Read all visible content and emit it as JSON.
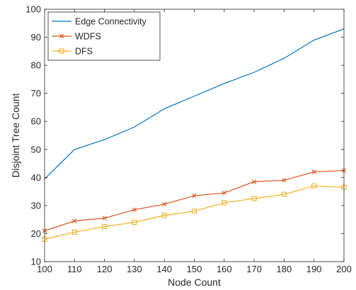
{
  "chart_data": {
    "type": "line",
    "title": "",
    "xlabel": "Node Count",
    "ylabel": "Disjoint Tree Count",
    "xlim": [
      100,
      200
    ],
    "ylim": [
      10,
      100
    ],
    "x_ticks": [
      100,
      110,
      120,
      130,
      140,
      150,
      160,
      170,
      180,
      190,
      200
    ],
    "y_ticks": [
      10,
      20,
      30,
      40,
      50,
      60,
      70,
      80,
      90,
      100
    ],
    "grid": false,
    "legend_position": "top-left",
    "x": [
      100,
      110,
      120,
      130,
      140,
      150,
      160,
      170,
      180,
      190,
      200
    ],
    "series": [
      {
        "name": "Edge Connectivity",
        "color": "#0072bd",
        "marker": "none",
        "values": [
          39.5,
          50,
          53.5,
          58,
          64.5,
          69,
          73.5,
          77.5,
          82.5,
          89,
          93
        ]
      },
      {
        "name": "WDFS",
        "color": "#d95319",
        "marker": "x",
        "values": [
          21,
          24.5,
          25.5,
          28.5,
          30.5,
          33.5,
          34.5,
          38.5,
          39,
          42,
          42.5
        ]
      },
      {
        "name": "DFS",
        "color": "#edb120",
        "marker": "square",
        "values": [
          18,
          20.5,
          22.5,
          24,
          26.5,
          28,
          31,
          32.5,
          34,
          37,
          36.5
        ]
      }
    ]
  }
}
